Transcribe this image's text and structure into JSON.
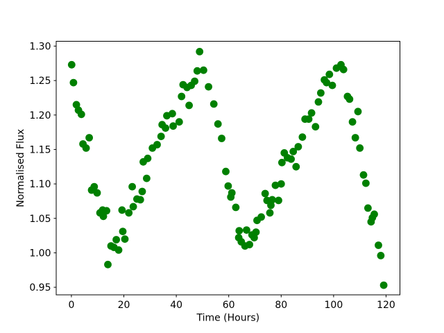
{
  "chart_data": {
    "type": "scatter",
    "title": "",
    "xlabel": "Time (Hours)",
    "ylabel": "Normalised Flux",
    "marker_color": "#008000",
    "background_color": "#ffffff",
    "axis_color": "#000000",
    "grid": "off",
    "legend": "none",
    "xlim": [
      -5.8,
      125.3
    ],
    "ylim": [
      0.939,
      1.307
    ],
    "x_ticks": [
      0,
      20,
      40,
      60,
      80,
      100,
      120
    ],
    "x_tick_labels": [
      "0",
      "20",
      "40",
      "60",
      "80",
      "100",
      "120"
    ],
    "y_ticks": [
      0.95,
      1.0,
      1.05,
      1.1,
      1.15,
      1.2,
      1.25,
      1.3
    ],
    "y_tick_labels": [
      "0.95",
      "1.00",
      "1.05",
      "1.10",
      "1.15",
      "1.20",
      "1.25",
      "1.30"
    ],
    "points": [
      [
        0.1,
        1.273
      ],
      [
        0.8,
        1.247
      ],
      [
        1.9,
        1.215
      ],
      [
        2.7,
        1.207
      ],
      [
        3.8,
        1.201
      ],
      [
        4.4,
        1.158
      ],
      [
        5.6,
        1.152
      ],
      [
        6.8,
        1.167
      ],
      [
        7.7,
        1.091
      ],
      [
        8.7,
        1.096
      ],
      [
        9.8,
        1.087
      ],
      [
        10.9,
        1.058
      ],
      [
        11.9,
        1.062
      ],
      [
        12.2,
        1.053
      ],
      [
        13.4,
        1.061
      ],
      [
        13.9,
        0.983
      ],
      [
        15.1,
        1.01
      ],
      [
        16.2,
        1.008
      ],
      [
        17.1,
        1.019
      ],
      [
        18.0,
        1.004
      ],
      [
        19.3,
        1.062
      ],
      [
        19.6,
        1.031
      ],
      [
        20.4,
        1.02
      ],
      [
        21.9,
        1.058
      ],
      [
        23.2,
        1.096
      ],
      [
        23.6,
        1.067
      ],
      [
        25.0,
        1.078
      ],
      [
        26.3,
        1.077
      ],
      [
        27.0,
        1.089
      ],
      [
        27.4,
        1.132
      ],
      [
        28.7,
        1.108
      ],
      [
        29.1,
        1.137
      ],
      [
        30.9,
        1.152
      ],
      [
        32.7,
        1.157
      ],
      [
        34.2,
        1.169
      ],
      [
        34.6,
        1.186
      ],
      [
        35.9,
        1.181
      ],
      [
        36.4,
        1.199
      ],
      [
        38.5,
        1.202
      ],
      [
        38.8,
        1.184
      ],
      [
        41.1,
        1.19
      ],
      [
        42.0,
        1.227
      ],
      [
        42.6,
        1.244
      ],
      [
        44.1,
        1.24
      ],
      [
        44.9,
        1.214
      ],
      [
        45.7,
        1.243
      ],
      [
        47.0,
        1.249
      ],
      [
        48.0,
        1.264
      ],
      [
        48.9,
        1.292
      ],
      [
        50.4,
        1.265
      ],
      [
        52.3,
        1.241
      ],
      [
        54.3,
        1.216
      ],
      [
        55.9,
        1.187
      ],
      [
        57.3,
        1.166
      ],
      [
        58.9,
        1.118
      ],
      [
        59.8,
        1.097
      ],
      [
        60.8,
        1.081
      ],
      [
        61.2,
        1.087
      ],
      [
        62.7,
        1.066
      ],
      [
        64.0,
        1.032
      ],
      [
        63.8,
        1.022
      ],
      [
        64.8,
        1.016
      ],
      [
        66.2,
        1.01
      ],
      [
        66.8,
        1.033
      ],
      [
        67.9,
        1.012
      ],
      [
        68.9,
        1.026
      ],
      [
        69.7,
        1.022
      ],
      [
        70.4,
        1.03
      ],
      [
        70.8,
        1.047
      ],
      [
        72.4,
        1.052
      ],
      [
        73.9,
        1.086
      ],
      [
        74.6,
        1.076
      ],
      [
        75.7,
        1.058
      ],
      [
        76.1,
        1.069
      ],
      [
        76.6,
        1.077
      ],
      [
        77.8,
        1.098
      ],
      [
        79.0,
        1.076
      ],
      [
        80.0,
        1.1
      ],
      [
        80.3,
        1.131
      ],
      [
        81.2,
        1.145
      ],
      [
        82.4,
        1.138
      ],
      [
        83.8,
        1.136
      ],
      [
        84.6,
        1.147
      ],
      [
        85.7,
        1.125
      ],
      [
        86.5,
        1.154
      ],
      [
        88.1,
        1.168
      ],
      [
        89.1,
        1.194
      ],
      [
        90.5,
        1.194
      ],
      [
        91.6,
        1.203
      ],
      [
        93.1,
        1.183
      ],
      [
        94.2,
        1.219
      ],
      [
        95.1,
        1.232
      ],
      [
        96.5,
        1.251
      ],
      [
        97.3,
        1.247
      ],
      [
        98.4,
        1.259
      ],
      [
        99.5,
        1.243
      ],
      [
        101.1,
        1.268
      ],
      [
        102.8,
        1.273
      ],
      [
        103.8,
        1.266
      ],
      [
        105.3,
        1.227
      ],
      [
        106.1,
        1.223
      ],
      [
        107.2,
        1.19
      ],
      [
        108.3,
        1.167
      ],
      [
        109.3,
        1.205
      ],
      [
        110.0,
        1.152
      ],
      [
        111.4,
        1.113
      ],
      [
        112.3,
        1.101
      ],
      [
        113.1,
        1.065
      ],
      [
        114.3,
        1.045
      ],
      [
        114.8,
        1.051
      ],
      [
        115.5,
        1.056
      ],
      [
        117.1,
        1.011
      ],
      [
        118.0,
        0.996
      ],
      [
        119.1,
        0.953
      ]
    ]
  }
}
